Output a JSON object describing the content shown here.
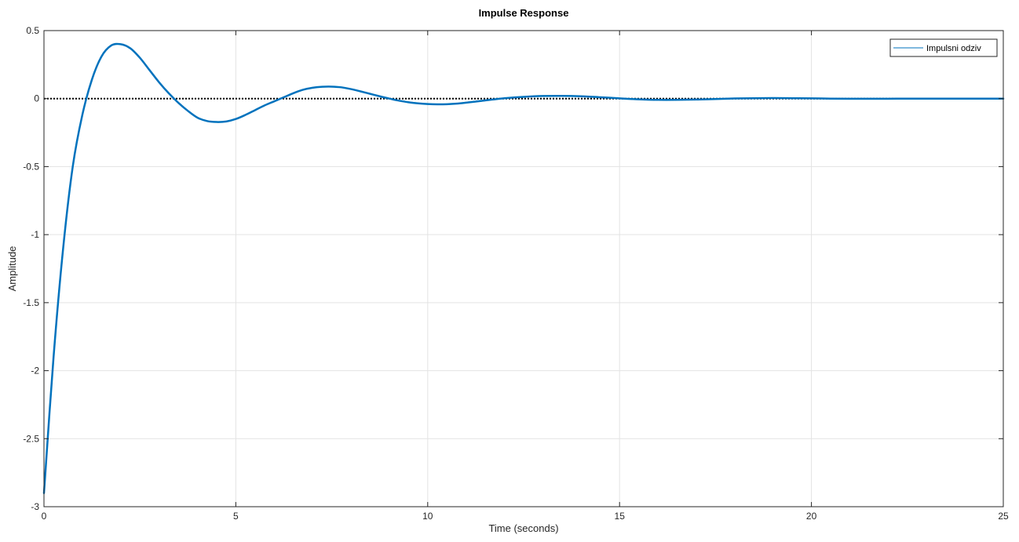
{
  "chart_data": {
    "type": "line",
    "title": "Impulse Response",
    "xlabel": "Time (seconds)",
    "ylabel": "Amplitude",
    "xlim": [
      0,
      25
    ],
    "ylim": [
      -3,
      0.5
    ],
    "xticks": [
      0,
      5,
      10,
      15,
      20,
      25
    ],
    "xtick_labels": [
      "0",
      "5",
      "10",
      "15",
      "20",
      "25"
    ],
    "yticks": [
      -3,
      -2.5,
      -2,
      -1.5,
      -1,
      -0.5,
      0,
      0.5
    ],
    "ytick_labels": [
      "-3",
      "-2.5",
      "-2",
      "-1.5",
      "-1",
      "-0.5",
      "0",
      "0.5"
    ],
    "grid": true,
    "legend": {
      "position": "top-right",
      "entries": [
        "Impulsni odziv"
      ]
    },
    "series": [
      {
        "name": "Impulsni odziv",
        "color": "#0072BD",
        "x": [
          0,
          0.25,
          0.5,
          0.75,
          1.0,
          1.25,
          1.5,
          1.75,
          2.0,
          2.25,
          2.5,
          2.75,
          3.0,
          3.25,
          3.5,
          3.75,
          4.0,
          4.25,
          4.5,
          4.75,
          5.0,
          5.25,
          5.5,
          5.75,
          6.0,
          6.25,
          6.5,
          6.75,
          7.0,
          7.25,
          7.5,
          7.75,
          8.0,
          8.25,
          8.5,
          8.75,
          9.0,
          9.25,
          9.5,
          9.75,
          10.0,
          10.25,
          10.5,
          10.75,
          11.0,
          11.25,
          11.5,
          11.75,
          12.0,
          12.5,
          13.0,
          13.5,
          14.0,
          14.5,
          15.0,
          15.5,
          16.0,
          16.5,
          17.0,
          17.5,
          18.0,
          18.5,
          19.0,
          19.5,
          20.0,
          20.5,
          21.0,
          21.5,
          22.0,
          22.5,
          23.0,
          23.5,
          24.0,
          24.5,
          25.0
        ],
        "y": [
          -2.9,
          -1.9,
          -1.1,
          -0.5,
          -0.12,
          0.14,
          0.31,
          0.39,
          0.4,
          0.37,
          0.3,
          0.21,
          0.12,
          0.04,
          -0.03,
          -0.09,
          -0.14,
          -0.165,
          -0.172,
          -0.168,
          -0.15,
          -0.12,
          -0.085,
          -0.05,
          -0.02,
          0.01,
          0.04,
          0.065,
          0.08,
          0.087,
          0.088,
          0.083,
          0.07,
          0.053,
          0.035,
          0.017,
          0.0,
          -0.015,
          -0.027,
          -0.035,
          -0.04,
          -0.042,
          -0.041,
          -0.037,
          -0.03,
          -0.022,
          -0.013,
          -0.005,
          0.003,
          0.013,
          0.019,
          0.02,
          0.017,
          0.01,
          0.002,
          -0.005,
          -0.009,
          -0.009,
          -0.007,
          -0.003,
          0.001,
          0.003,
          0.004,
          0.003,
          0.002,
          0.0,
          -0.001,
          -0.001,
          -0.001,
          0.0,
          0.0,
          0.0,
          0.0,
          0.0,
          0.0
        ]
      }
    ],
    "reference_line": {
      "y": 0,
      "color": "#000000",
      "style": "dotted"
    }
  }
}
